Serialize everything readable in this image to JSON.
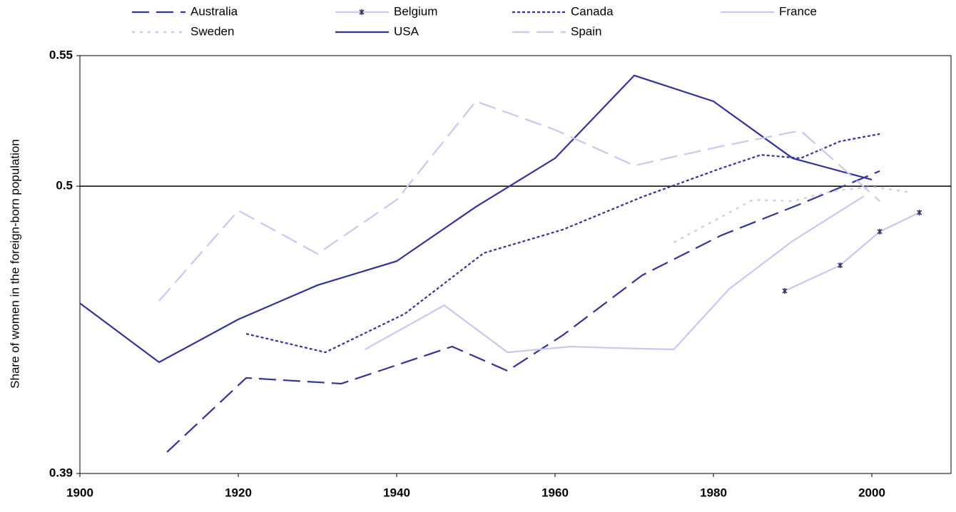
{
  "chart_data": {
    "type": "line",
    "y_label": "Share of women in the foreign-born population",
    "xlim": [
      1900,
      2010
    ],
    "xticks": [
      1900,
      1920,
      1940,
      1960,
      1980,
      2000
    ],
    "ylim": [
      0.39,
      0.55
    ],
    "yticks": [
      0.39,
      0.5,
      0.55
    ],
    "reference_line": 0.5,
    "series": [
      {
        "name": "Australia",
        "color": "#333399",
        "style": "longdash",
        "x": [
          1911,
          1921,
          1933,
          1947,
          1954,
          1961,
          1971,
          1981,
          1991,
          2001
        ],
        "values": [
          0.3982,
          0.4266,
          0.4244,
          0.4386,
          0.4293,
          0.443,
          0.4659,
          0.4812,
          0.4932,
          0.5058
        ]
      },
      {
        "name": "Belgium",
        "color": "#c8c8f0",
        "style": "solid",
        "marker": "#333366",
        "x": [
          1989,
          1996,
          2001,
          2006
        ],
        "values": [
          0.4599,
          0.4697,
          0.4826,
          0.4899
        ]
      },
      {
        "name": "Canada",
        "color": "#333399",
        "style": "shortdash",
        "x": [
          1921,
          1931,
          1941,
          1951,
          1961,
          1971,
          1981,
          1986,
          1991,
          1996,
          2001
        ],
        "values": [
          0.4435,
          0.4364,
          0.4511,
          0.4744,
          0.4834,
          0.4959,
          0.5069,
          0.512,
          0.5107,
          0.5172,
          0.52
        ]
      },
      {
        "name": "France",
        "color": "#c8c8f0",
        "style": "solid",
        "x": [
          1936,
          1946,
          1954,
          1962,
          1968,
          1975,
          1982,
          1990,
          1999
        ],
        "values": [
          0.4375,
          0.4544,
          0.4364,
          0.4386,
          0.438,
          0.4375,
          0.4607,
          0.479,
          0.4962
        ]
      },
      {
        "name": "Sweden",
        "color": "#c8c8f0",
        "style": "dot",
        "x": [
          1975,
          1985,
          1990,
          1995,
          2000,
          2005
        ],
        "values": [
          0.4785,
          0.4948,
          0.4943,
          0.4981,
          0.4998,
          0.4976
        ]
      },
      {
        "name": "USA",
        "color": "#333399",
        "style": "solid",
        "x": [
          1900,
          1910,
          1920,
          1930,
          1940,
          1950,
          1960,
          1970,
          1980,
          1990,
          2000
        ],
        "values": [
          0.4552,
          0.4326,
          0.449,
          0.4621,
          0.4713,
          0.4921,
          0.5107,
          0.5424,
          0.5325,
          0.5107,
          0.5025
        ]
      },
      {
        "name": "Spain",
        "color": "#c8c8f0",
        "style": "longdash",
        "x": [
          1910,
          1920,
          1930,
          1940,
          1950,
          1960,
          1970,
          1981,
          1991,
          2001
        ],
        "values": [
          0.4561,
          0.4907,
          0.4741,
          0.4948,
          0.5325,
          0.5216,
          0.5079,
          0.5153,
          0.5213,
          0.4943
        ]
      }
    ]
  }
}
